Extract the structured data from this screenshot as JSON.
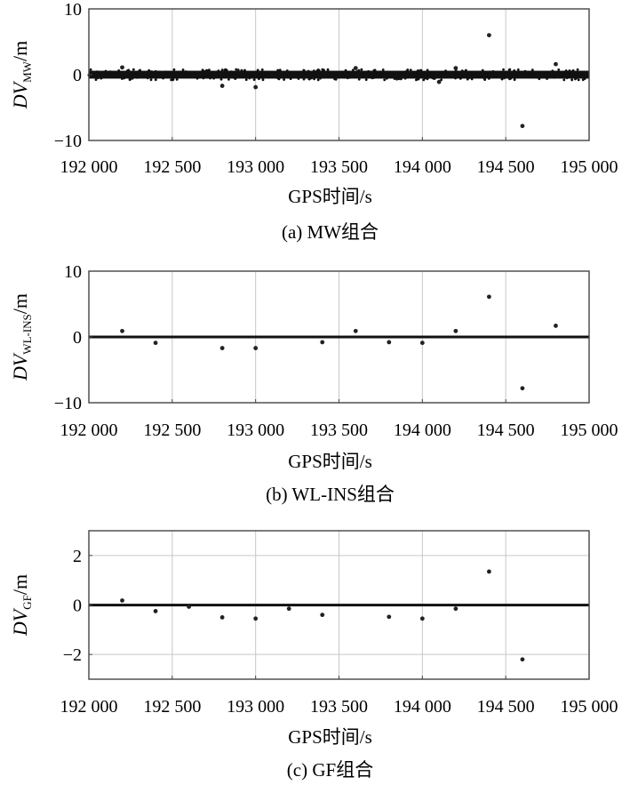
{
  "chart_data": [
    {
      "type": "scatter",
      "ylabel_main": "DV",
      "ylabel_sub": "MW",
      "ylabel_unit": "/m",
      "xlabel": "GPS时间/s",
      "caption": "(a) MW组合",
      "xlim": [
        192000,
        195000
      ],
      "ylim": [
        -10,
        10
      ],
      "xticks": [
        192000,
        192500,
        193000,
        193500,
        194000,
        194500,
        195000
      ],
      "xtick_labels": [
        "192 000",
        "192 500",
        "193 000",
        "193 500",
        "194 000",
        "194 500",
        "195 000"
      ],
      "yticks": [
        -10,
        0,
        10
      ],
      "ytick_labels": [
        "−10",
        "0",
        "10"
      ],
      "grid": true,
      "dense_band": {
        "x_range": [
          192000,
          195000
        ],
        "y_range": [
          -0.6,
          0.6
        ]
      },
      "points": [
        {
          "x": 192200,
          "y": 1.1
        },
        {
          "x": 192800,
          "y": -1.7
        },
        {
          "x": 193000,
          "y": -1.9
        },
        {
          "x": 193600,
          "y": 1.0
        },
        {
          "x": 194100,
          "y": -1.1
        },
        {
          "x": 194200,
          "y": 1.0
        },
        {
          "x": 194400,
          "y": 6.0
        },
        {
          "x": 194600,
          "y": -7.8
        },
        {
          "x": 194800,
          "y": 1.6
        }
      ]
    },
    {
      "type": "scatter",
      "ylabel_main": "DV",
      "ylabel_sub": "WL-INS",
      "ylabel_unit": "/m",
      "xlabel": "GPS时间/s",
      "caption": "(b) WL-INS组合",
      "xlim": [
        192000,
        195000
      ],
      "ylim": [
        -10,
        10
      ],
      "xticks": [
        192000,
        192500,
        193000,
        193500,
        194000,
        194500,
        195000
      ],
      "xtick_labels": [
        "192 000",
        "192 500",
        "193 000",
        "193 500",
        "194 000",
        "194 500",
        "195 000"
      ],
      "yticks": [
        -10,
        0,
        10
      ],
      "ytick_labels": [
        "−10",
        "0",
        "10"
      ],
      "grid": true,
      "dense_band": {
        "x_range": [
          192000,
          195000
        ],
        "y_range": [
          -0.2,
          0.2
        ]
      },
      "points": [
        {
          "x": 192200,
          "y": 0.9
        },
        {
          "x": 192400,
          "y": -0.9
        },
        {
          "x": 192800,
          "y": -1.7
        },
        {
          "x": 193000,
          "y": -1.7
        },
        {
          "x": 193400,
          "y": -0.8
        },
        {
          "x": 193600,
          "y": 0.9
        },
        {
          "x": 193800,
          "y": -0.8
        },
        {
          "x": 194000,
          "y": -0.9
        },
        {
          "x": 194200,
          "y": 0.9
        },
        {
          "x": 194400,
          "y": 6.1
        },
        {
          "x": 194600,
          "y": -7.8
        },
        {
          "x": 194800,
          "y": 1.7
        }
      ]
    },
    {
      "type": "scatter",
      "ylabel_main": "DV",
      "ylabel_sub": "GF",
      "ylabel_unit": "/m",
      "xlabel": "GPS时间/s",
      "caption": "(c) GF组合",
      "xlim": [
        192000,
        195000
      ],
      "ylim": [
        -3,
        3
      ],
      "xticks": [
        192000,
        192500,
        193000,
        193500,
        194000,
        194500,
        195000
      ],
      "xtick_labels": [
        "192 000",
        "192 500",
        "193 000",
        "193 500",
        "194 000",
        "194 500",
        "195 000"
      ],
      "yticks": [
        -2,
        0,
        2
      ],
      "ytick_labels": [
        "−2",
        "0",
        "2"
      ],
      "grid": true,
      "dense_band": {
        "x_range": [
          192000,
          195000
        ],
        "y_range": [
          -0.05,
          0.05
        ]
      },
      "points": [
        {
          "x": 192200,
          "y": 0.18
        },
        {
          "x": 192400,
          "y": -0.25
        },
        {
          "x": 192600,
          "y": -0.07
        },
        {
          "x": 192800,
          "y": -0.5
        },
        {
          "x": 193000,
          "y": -0.55
        },
        {
          "x": 193200,
          "y": -0.15
        },
        {
          "x": 193400,
          "y": -0.4
        },
        {
          "x": 193800,
          "y": -0.48
        },
        {
          "x": 194000,
          "y": -0.55
        },
        {
          "x": 194200,
          "y": -0.15
        },
        {
          "x": 194400,
          "y": 1.35
        },
        {
          "x": 194600,
          "y": -2.2
        }
      ]
    }
  ]
}
